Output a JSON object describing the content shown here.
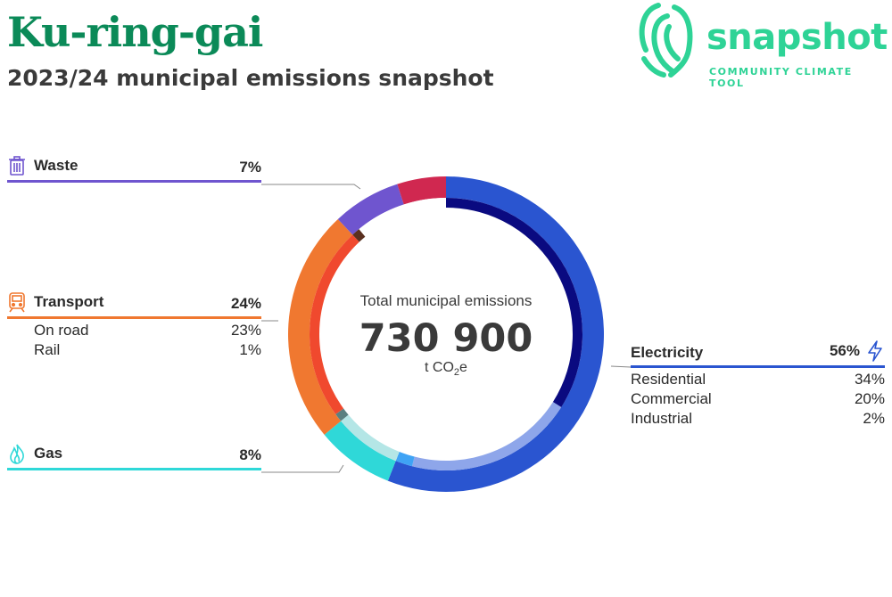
{
  "header": {
    "title": "Ku-ring-gai",
    "subtitle": "2023/24 municipal emissions snapshot"
  },
  "logo": {
    "word": "snapshot",
    "tagline": "COMMUNITY CLIMATE TOOL",
    "color": "#2ed396"
  },
  "center": {
    "label": "Total municipal emissions",
    "value": "730 900",
    "unit_prefix": "t CO",
    "unit_sub": "2",
    "unit_suffix": "e"
  },
  "categories": {
    "waste": {
      "name": "Waste",
      "pct": "7%",
      "icon": "trash-icon",
      "color": "#6f55cf"
    },
    "transport": {
      "name": "Transport",
      "pct": "24%",
      "icon": "train-icon",
      "color": "#f07830",
      "sub": [
        {
          "name": "On road",
          "pct": "23%"
        },
        {
          "name": "Rail",
          "pct": "1%"
        }
      ]
    },
    "gas": {
      "name": "Gas",
      "pct": "8%",
      "icon": "flame-icon",
      "color": "#2fd8d8"
    },
    "electricity": {
      "name": "Electricity",
      "pct": "56%",
      "icon": "lightning-icon",
      "color": "#2a55d0",
      "sub": [
        {
          "name": "Residential",
          "pct": "34%"
        },
        {
          "name": "Commercial",
          "pct": "20%"
        },
        {
          "name": "Industrial",
          "pct": "2%"
        }
      ]
    }
  },
  "chart_data": {
    "type": "pie",
    "variant": "donut with inner sub-category ring",
    "total": 730900,
    "unit": "t CO2e",
    "outer": [
      {
        "name": "Electricity",
        "value": 56,
        "color": "#2a55d0"
      },
      {
        "name": "Gas",
        "value": 8,
        "color": "#2fd8d8"
      },
      {
        "name": "Transport",
        "value": 24,
        "color": "#f07830"
      },
      {
        "name": "Waste",
        "value": 7,
        "color": "#6f55cf"
      },
      {
        "name": "",
        "value": 5,
        "color": "#d02850"
      }
    ],
    "inner": [
      {
        "name": "Residential",
        "value": 34,
        "color": "#0a0a80"
      },
      {
        "name": "Commercial",
        "value": 20,
        "color": "#8ea6ea"
      },
      {
        "name": "Industrial",
        "value": 2,
        "color": "#3fa3f5"
      },
      {
        "name": "",
        "value": 8,
        "color": "#b4e6e6"
      },
      {
        "name": "Rail",
        "value": 1,
        "color": "#5a8080"
      },
      {
        "name": "On road",
        "value": 23,
        "color": "#f0492e"
      },
      {
        "name": "",
        "value": 1,
        "color": "#5a3020"
      },
      {
        "name": "",
        "value": 11,
        "color": "#ffffff"
      }
    ]
  }
}
